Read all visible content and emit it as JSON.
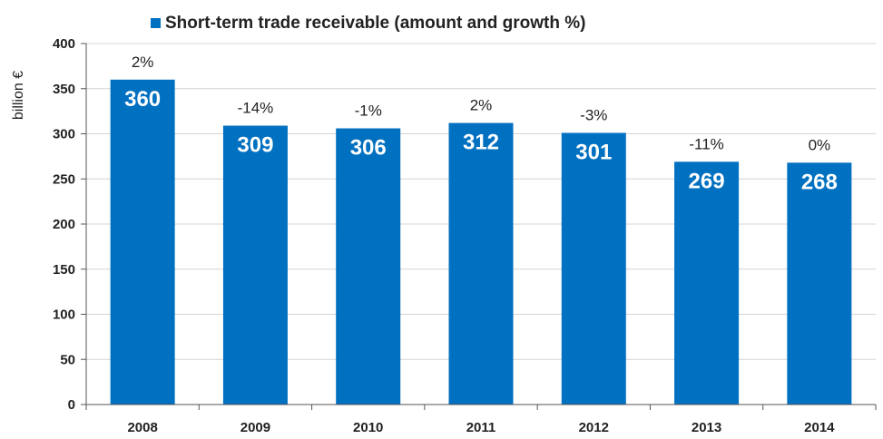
{
  "chart_data": {
    "type": "bar",
    "legend": "Short-term trade receivable (amount and growth %)",
    "legend_position": "top",
    "ylabel": "billion €",
    "xlabel": "",
    "categories": [
      "2008",
      "2009",
      "2010",
      "2011",
      "2012",
      "2013",
      "2014"
    ],
    "values": [
      360,
      309,
      306,
      312,
      301,
      269,
      268
    ],
    "value_labels": [
      "360",
      "309",
      "306",
      "312",
      "301",
      "269",
      "268"
    ],
    "growth_labels": [
      "2%",
      "-14%",
      "-1%",
      "2%",
      "-3%",
      "-11%",
      "0%"
    ],
    "ylim": [
      0,
      400
    ],
    "yticks": [
      "0",
      "50",
      "100",
      "150",
      "200",
      "250",
      "300",
      "350",
      "400"
    ],
    "grid": true,
    "bar_color": "#0070C0"
  }
}
